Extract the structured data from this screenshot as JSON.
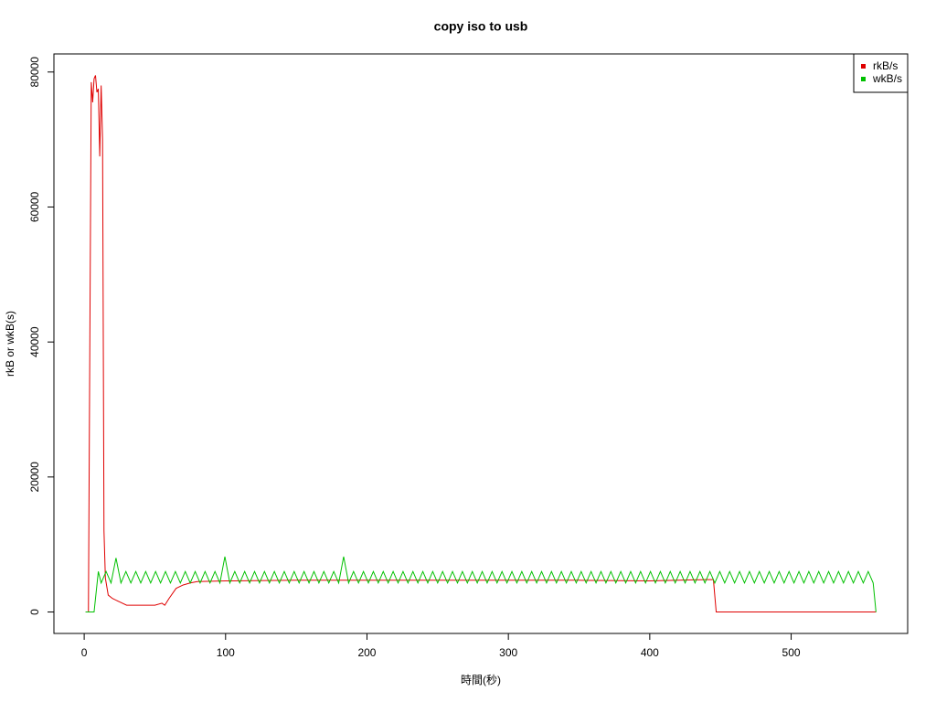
{
  "chart_data": {
    "type": "line",
    "title": "copy iso to usb",
    "x_label": "時間(秒)",
    "y_label": "rkB or wkB(s)",
    "xlim": [
      -21.4,
      582.4
    ],
    "ylim": [
      -3180,
      82680
    ],
    "xticks": [
      0,
      100,
      200,
      300,
      400,
      500
    ],
    "yticks": [
      0,
      20000,
      40000,
      60000,
      80000
    ],
    "legend": "top-right",
    "series": [
      {
        "name": "rkB/s",
        "color": "#df0000",
        "x": [
          1,
          3,
          4,
          5,
          6,
          7,
          8,
          9,
          10,
          11,
          12,
          13,
          14,
          15,
          17,
          20,
          25,
          30,
          40,
          50,
          55,
          57,
          60,
          65,
          70,
          75,
          80,
          100,
          150,
          200,
          250,
          300,
          350,
          400,
          440,
          445,
          447,
          560
        ],
        "values": [
          0,
          0,
          40000,
          78500,
          75500,
          79000,
          79500,
          77000,
          77500,
          67500,
          78000,
          70000,
          12000,
          5000,
          2500,
          2000,
          1500,
          1000,
          1000,
          1000,
          1300,
          1000,
          2000,
          3500,
          4000,
          4300,
          4500,
          4600,
          4700,
          4700,
          4700,
          4700,
          4700,
          4600,
          4800,
          4800,
          0,
          0
        ]
      },
      {
        "name": "wkB/s",
        "color": "#00c000",
        "x": [
          1,
          7,
          10,
          12,
          15.5,
          19,
          22.5,
          26,
          29.5,
          33,
          36.5,
          40,
          43.5,
          47,
          50.5,
          54,
          57.5,
          61,
          64.5,
          68,
          71.5,
          75,
          78.5,
          82,
          85.5,
          89,
          92.5,
          96,
          99.5,
          103,
          106.5,
          110,
          113.5,
          117,
          120.5,
          124,
          127.5,
          131,
          134.5,
          138,
          141.5,
          145,
          148.5,
          152,
          155.5,
          159,
          162.5,
          166,
          169.5,
          173,
          176.5,
          180,
          183.5,
          187,
          190.5,
          194,
          197.5,
          201,
          204.5,
          208,
          211.5,
          215,
          218.5,
          222,
          225.5,
          229,
          232.5,
          236,
          239.5,
          243,
          246.5,
          250,
          253.5,
          257,
          260.5,
          264,
          267.5,
          271,
          274.5,
          278,
          281.5,
          285,
          288.5,
          292,
          295.5,
          299,
          302.5,
          306,
          309.5,
          313,
          316.5,
          320,
          323.5,
          327,
          330.5,
          334,
          337.5,
          341,
          344.5,
          348,
          351.5,
          355,
          358.5,
          362,
          365.5,
          369,
          372.5,
          376,
          379.5,
          383,
          386.5,
          390,
          393.5,
          397,
          400.5,
          404,
          407.5,
          411,
          414.5,
          418,
          421.5,
          425,
          428.5,
          432,
          435.5,
          439,
          442.5,
          446,
          449.5,
          453,
          456.5,
          460,
          463.5,
          467,
          470.5,
          474,
          477.5,
          481,
          484.5,
          488,
          491.5,
          495,
          498.5,
          502,
          505.5,
          509,
          512.5,
          516,
          519.5,
          523,
          526.5,
          530,
          533.5,
          537,
          540.5,
          544,
          547.5,
          551,
          554.5,
          558,
          560
        ],
        "values": [
          0,
          0,
          6000,
          4300,
          6000,
          4300,
          8000,
          4300,
          6000,
          4300,
          6000,
          4300,
          6000,
          4300,
          6000,
          4300,
          6000,
          4300,
          6000,
          4300,
          6000,
          4300,
          6000,
          4300,
          6000,
          4300,
          6000,
          4300,
          8200,
          4300,
          6000,
          4300,
          6000,
          4300,
          6000,
          4300,
          6000,
          4300,
          6000,
          4300,
          6000,
          4300,
          6000,
          4300,
          6000,
          4300,
          6000,
          4300,
          6000,
          4300,
          6000,
          4300,
          8200,
          4300,
          6000,
          4300,
          6000,
          4300,
          6000,
          4300,
          6000,
          4300,
          6000,
          4300,
          6000,
          4300,
          6000,
          4300,
          6000,
          4300,
          6000,
          4300,
          6000,
          4300,
          6000,
          4300,
          6000,
          4300,
          6000,
          4300,
          6000,
          4300,
          6000,
          4300,
          6000,
          4300,
          6000,
          4300,
          6000,
          4300,
          6000,
          4300,
          6000,
          4300,
          6000,
          4300,
          6000,
          4300,
          6000,
          4300,
          6000,
          4300,
          6000,
          4300,
          6000,
          4300,
          6000,
          4300,
          6000,
          4300,
          6000,
          4300,
          6000,
          4300,
          6000,
          4300,
          6000,
          4300,
          6000,
          4300,
          6000,
          4300,
          6000,
          4300,
          6000,
          4300,
          6000,
          4300,
          6000,
          4300,
          6000,
          4300,
          6000,
          4300,
          6000,
          4300,
          6000,
          4300,
          6000,
          4300,
          6000,
          4300,
          6000,
          4300,
          6000,
          4300,
          6000,
          4300,
          6000,
          4300,
          6000,
          4300,
          6000,
          4300,
          6000,
          4300,
          6000,
          4300,
          6000,
          4300,
          0
        ]
      }
    ]
  }
}
